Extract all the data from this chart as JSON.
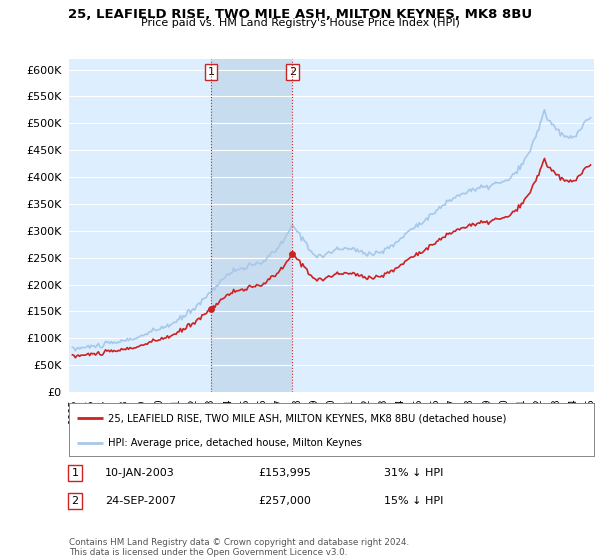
{
  "title": "25, LEAFIELD RISE, TWO MILE ASH, MILTON KEYNES, MK8 8BU",
  "subtitle": "Price paid vs. HM Land Registry's House Price Index (HPI)",
  "hpi_color": "#a8c8e8",
  "price_color": "#cc2222",
  "background_color": "#ddeeff",
  "shade_color": "#c8dcf0",
  "ylim": [
    0,
    620000
  ],
  "yticks": [
    0,
    50000,
    100000,
    150000,
    200000,
    250000,
    300000,
    350000,
    400000,
    450000,
    500000,
    550000,
    600000
  ],
  "legend_entry1": "25, LEAFIELD RISE, TWO MILE ASH, MILTON KEYNES, MK8 8BU (detached house)",
  "legend_entry2": "HPI: Average price, detached house, Milton Keynes",
  "transaction1_date": "10-JAN-2003",
  "transaction1_price": "£153,995",
  "transaction1_hpi": "31% ↓ HPI",
  "transaction2_date": "24-SEP-2007",
  "transaction2_price": "£257,000",
  "transaction2_hpi": "15% ↓ HPI",
  "footer": "Contains HM Land Registry data © Crown copyright and database right 2024.\nThis data is licensed under the Open Government Licence v3.0.",
  "sale1_year": 2003.03,
  "sale1_price": 153995,
  "sale2_year": 2007.73,
  "sale2_price": 257000,
  "xmin": 1995,
  "xmax": 2025
}
